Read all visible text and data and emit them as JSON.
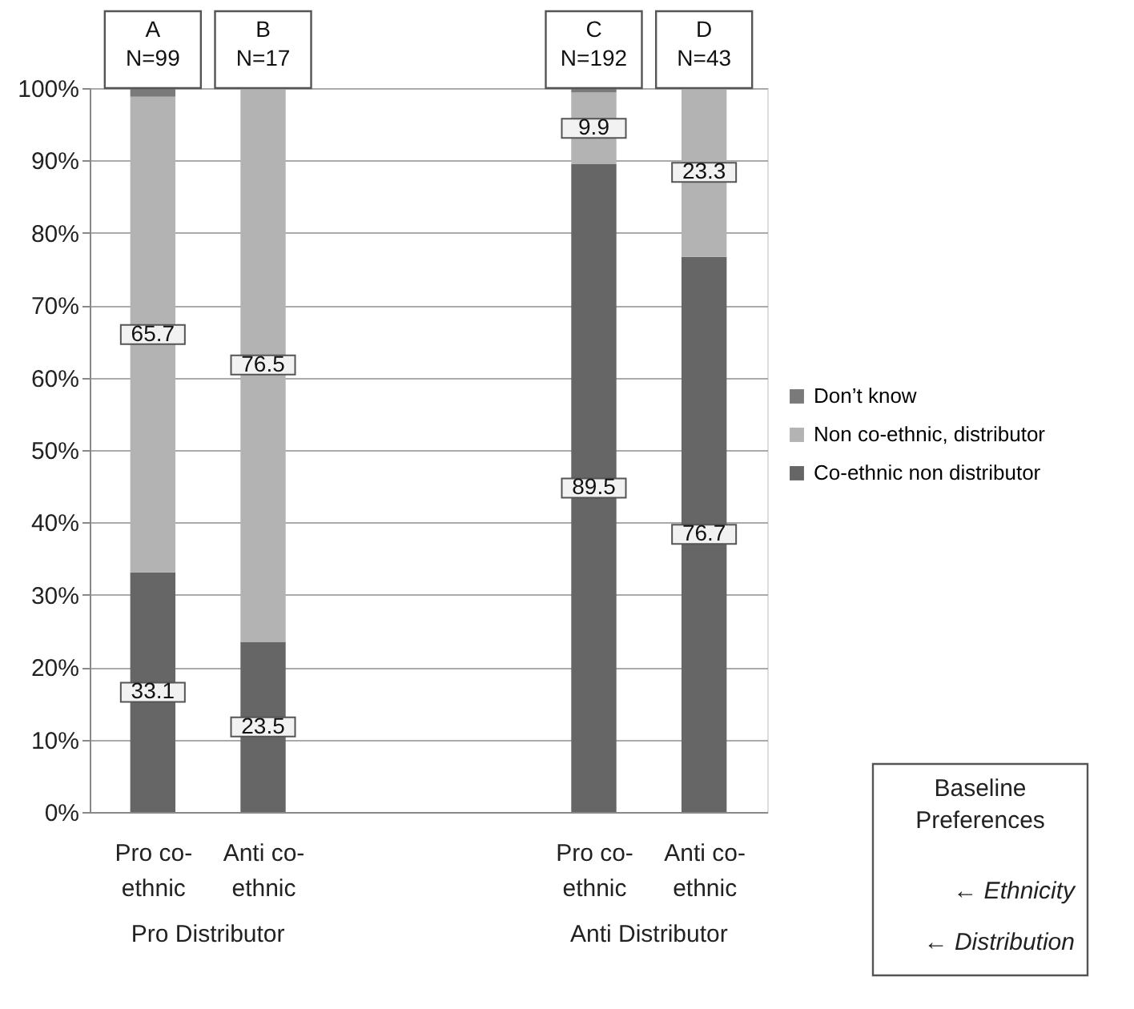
{
  "chart_data": {
    "type": "bar",
    "stacked": true,
    "categories": [
      "Pro co-ethnic",
      "Anti co-ethnic",
      null,
      null,
      "Pro co-ethnic",
      "Anti co-ethnic"
    ],
    "series": [
      {
        "name": "Co-ethnic non distributor",
        "color": "#666666",
        "values": [
          33.1,
          23.5,
          null,
          null,
          89.5,
          76.7
        ],
        "value_labels": [
          "33.1",
          "23.5",
          null,
          null,
          "89.5",
          "76.7"
        ]
      },
      {
        "name": "Non co-ethnic, distributor",
        "color": "#b3b3b3",
        "values": [
          65.7,
          76.5,
          null,
          null,
          9.9,
          23.3
        ],
        "value_labels": [
          "65.7",
          "76.5",
          null,
          null,
          "9.9",
          "23.3"
        ]
      },
      {
        "name": "Don’t know",
        "color": "#7a7a7a",
        "values": [
          1.2,
          null,
          null,
          null,
          0.6,
          null
        ],
        "value_labels": [
          null,
          null,
          null,
          null,
          null,
          null
        ]
      }
    ],
    "ylim": [
      0,
      100
    ],
    "yticks": [
      {
        "value": 0,
        "label": "0%"
      },
      {
        "value": 10,
        "label": "10%"
      },
      {
        "value": 20,
        "label": "20%"
      },
      {
        "value": 30,
        "label": "30%"
      },
      {
        "value": 40,
        "label": "40%"
      },
      {
        "value": 50,
        "label": "50%"
      },
      {
        "value": 60,
        "label": "60%"
      },
      {
        "value": 70,
        "label": "70%"
      },
      {
        "value": 80,
        "label": "80%"
      },
      {
        "value": 90,
        "label": "90%"
      },
      {
        "value": 100,
        "label": "100%"
      }
    ],
    "grid": "y",
    "legend": "right",
    "annotations": [
      "A\nN=99",
      "B\nN=17",
      "C\nN=192",
      "D\nN=43",
      "Pro Distributor",
      "Anti Distributor",
      "Baseline\nPreferences",
      "← Ethnicity",
      "← Distribution"
    ]
  }
}
